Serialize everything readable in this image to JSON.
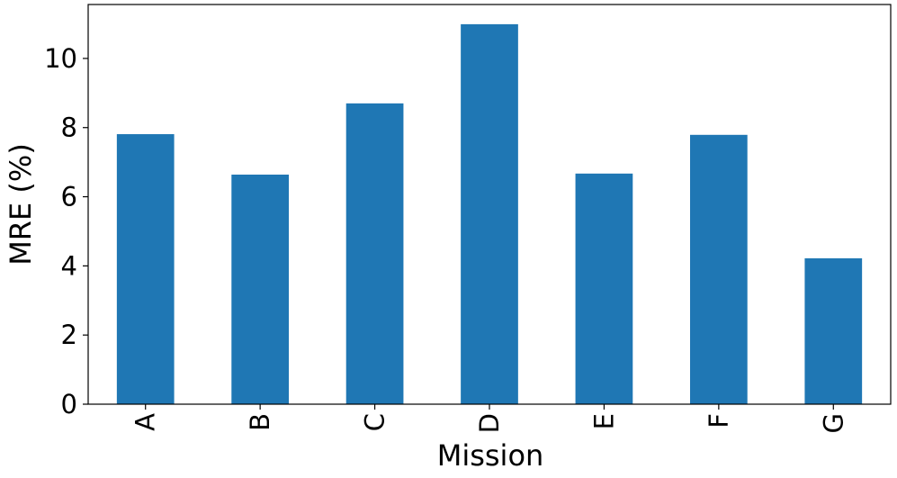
{
  "chart_data": {
    "type": "bar",
    "x_label": "Mission",
    "y_label": "MRE (%)",
    "categories": [
      "A",
      "B",
      "C",
      "D",
      "E",
      "F",
      "G"
    ],
    "values": [
      7.81,
      6.64,
      8.7,
      10.99,
      6.67,
      7.79,
      4.22
    ],
    "color": "#1f77b4",
    "ylim": [
      0,
      11.56
    ],
    "yticks": [
      0,
      2,
      4,
      6,
      8,
      10
    ],
    "grid": false
  }
}
